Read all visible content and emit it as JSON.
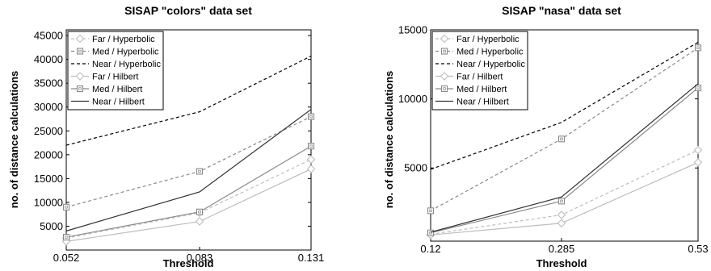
{
  "chart_data": [
    {
      "type": "line",
      "title": "SISAP \"colors\" data set",
      "xlabel": "Threshold",
      "ylabel": "no. of distance calculations",
      "x": [
        0.052,
        0.083,
        0.131
      ],
      "x_ticks": [
        "0.052",
        "0.083",
        "0.131"
      ],
      "ylim": [
        0,
        45000
      ],
      "y_ticks": [
        5000,
        10000,
        15000,
        20000,
        25000,
        30000,
        35000,
        40000,
        45000
      ],
      "legend_position": "top-left",
      "series": [
        {
          "name": "Far / Hyperbolic",
          "values": [
            2500,
            7800,
            19000
          ],
          "color": "#bdbdbd",
          "dash": "dashed",
          "marker": "diamond"
        },
        {
          "name": "Med / Hyperbolic",
          "values": [
            9000,
            16500,
            28000
          ],
          "color": "#8a8a8a",
          "dash": "dashed",
          "marker": "square"
        },
        {
          "name": "Near / Hyperbolic",
          "values": [
            22000,
            29000,
            40700
          ],
          "color": "#000000",
          "dash": "dashed",
          "marker": "none"
        },
        {
          "name": "Far / Hilbert",
          "values": [
            1800,
            6000,
            17000
          ],
          "color": "#bdbdbd",
          "dash": "solid",
          "marker": "diamond"
        },
        {
          "name": "Med / Hilbert",
          "values": [
            2700,
            8000,
            21800
          ],
          "color": "#8a8a8a",
          "dash": "solid",
          "marker": "square"
        },
        {
          "name": "Near / Hilbert",
          "values": [
            4000,
            12200,
            29500
          ],
          "color": "#333333",
          "dash": "solid",
          "marker": "none"
        }
      ]
    },
    {
      "type": "line",
      "title": "SISAP \"nasa\" data set",
      "xlabel": "Threshold",
      "ylabel": "no. of distance calculations",
      "x": [
        0.12,
        0.285,
        0.53
      ],
      "x_ticks": [
        "0.12",
        "0.285",
        "0.53"
      ],
      "ylim": [
        0,
        15000
      ],
      "y_ticks": [
        5000,
        10000,
        15000
      ],
      "legend_position": "top-left",
      "series": [
        {
          "name": "Far / Hyperbolic",
          "values": [
            200,
            1600,
            6300
          ],
          "color": "#bdbdbd",
          "dash": "dashed",
          "marker": "diamond"
        },
        {
          "name": "Med / Hyperbolic",
          "values": [
            1900,
            7100,
            13700
          ],
          "color": "#8a8a8a",
          "dash": "dashed",
          "marker": "square"
        },
        {
          "name": "Near / Hyperbolic",
          "values": [
            4900,
            8300,
            14100
          ],
          "color": "#000000",
          "dash": "dashed",
          "marker": "none"
        },
        {
          "name": "Far / Hilbert",
          "values": [
            150,
            1000,
            5400
          ],
          "color": "#bdbdbd",
          "dash": "solid",
          "marker": "diamond"
        },
        {
          "name": "Med / Hilbert",
          "values": [
            300,
            2600,
            10800
          ],
          "color": "#8a8a8a",
          "dash": "solid",
          "marker": "square"
        },
        {
          "name": "Near / Hilbert",
          "values": [
            350,
            2900,
            11100
          ],
          "color": "#333333",
          "dash": "solid",
          "marker": "none"
        }
      ]
    }
  ]
}
